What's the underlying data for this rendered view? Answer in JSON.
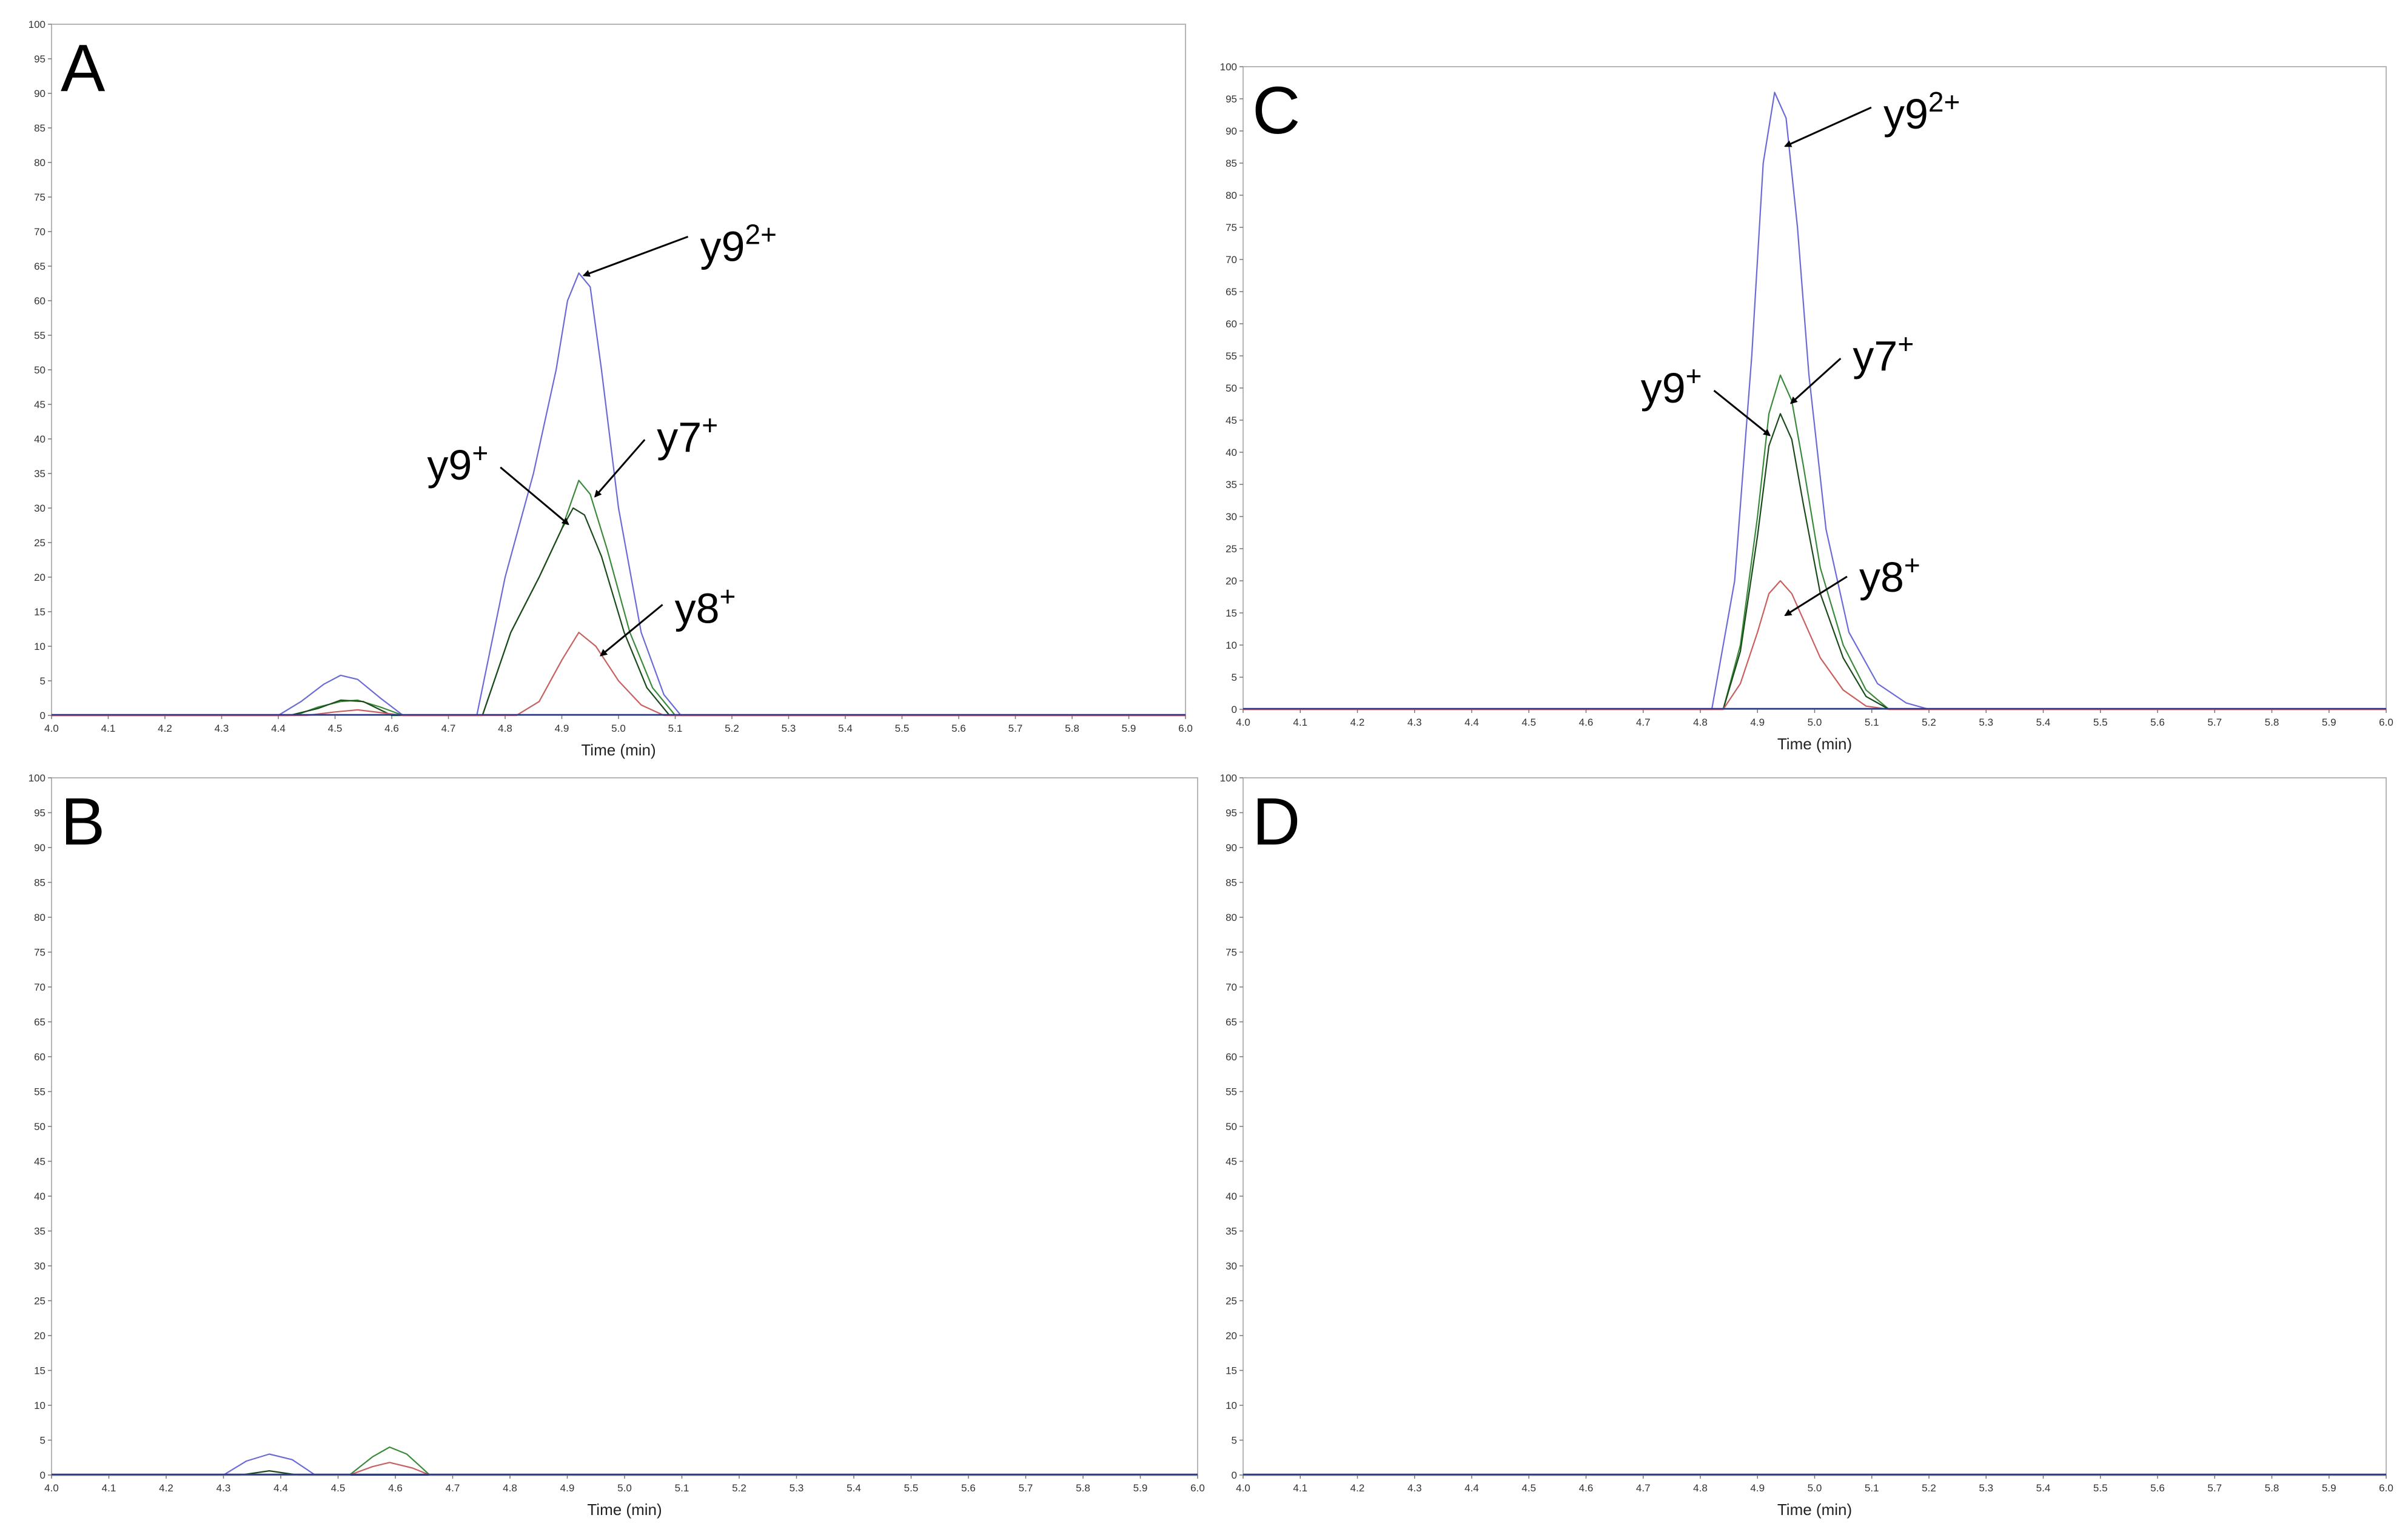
{
  "chart_data": [
    {
      "panel": "A",
      "type": "line",
      "xlabel": "Time (min)",
      "xlim": [
        4.0,
        6.0
      ],
      "ylim": [
        0,
        100
      ],
      "x_ticks": [
        "4.0",
        "4.1",
        "4.2",
        "4.3",
        "4.4",
        "4.5",
        "4.6",
        "4.7",
        "4.8",
        "4.9",
        "5.0",
        "5.1",
        "5.2",
        "5.3",
        "5.4",
        "5.5",
        "5.6",
        "5.7",
        "5.8",
        "5.9",
        "6.0"
      ],
      "y_ticks": [
        "0",
        "5",
        "10",
        "15",
        "20",
        "25",
        "30",
        "35",
        "40",
        "45",
        "50",
        "55",
        "60",
        "65",
        "70",
        "75",
        "80",
        "85",
        "90",
        "95",
        "100"
      ],
      "series": [
        {
          "color": "#6b6bd6",
          "x": [
            4.0,
            4.4,
            4.44,
            4.48,
            4.51,
            4.54,
            4.58,
            4.62,
            4.75,
            4.8,
            4.85,
            4.89,
            4.91,
            4.93,
            4.95,
            4.97,
            5.0,
            5.04,
            5.08,
            5.11,
            6.0
          ],
          "y": [
            0,
            0,
            2.0,
            4.5,
            5.8,
            5.2,
            2.5,
            0,
            0,
            20,
            35,
            50,
            60,
            64,
            62,
            50,
            30,
            12,
            3,
            0,
            0
          ]
        },
        {
          "color": "#3a8a3a",
          "x": [
            4.0,
            4.43,
            4.47,
            4.51,
            4.54,
            4.58,
            4.62,
            4.76,
            4.81,
            4.86,
            4.9,
            4.93,
            4.95,
            4.98,
            5.02,
            5.06,
            5.1,
            6.0
          ],
          "y": [
            0,
            0,
            1.2,
            2.0,
            2.2,
            1.2,
            0,
            0,
            12,
            20,
            27,
            34,
            32,
            24,
            12,
            4,
            0,
            0
          ]
        },
        {
          "color": "#1a4a1a",
          "x": [
            4.0,
            4.42,
            4.47,
            4.51,
            4.55,
            4.6,
            4.76,
            4.81,
            4.86,
            4.9,
            4.92,
            4.94,
            4.97,
            5.01,
            5.05,
            5.09,
            6.0
          ],
          "y": [
            0,
            0,
            1.0,
            2.2,
            2.0,
            0,
            0,
            12,
            20,
            27,
            30,
            29,
            23,
            12,
            4,
            0,
            0
          ]
        },
        {
          "color": "#c86060",
          "x": [
            4.0,
            4.45,
            4.5,
            4.54,
            4.58,
            4.62,
            4.82,
            4.86,
            4.9,
            4.93,
            4.96,
            5.0,
            5.04,
            5.08,
            6.0
          ],
          "y": [
            0,
            0,
            0.5,
            0.8,
            0.4,
            0,
            0,
            2,
            8,
            12,
            10,
            5,
            1.5,
            0,
            0
          ]
        }
      ],
      "annotations": [
        {
          "text": "y9",
          "sup": "2+",
          "x": 4.93,
          "y": 64
        },
        {
          "text": "y7",
          "sup": "+",
          "x": 4.95,
          "y": 32
        },
        {
          "text": "y9",
          "sup": "+",
          "x": 4.92,
          "y": 28
        },
        {
          "text": "y8",
          "sup": "+",
          "x": 4.96,
          "y": 9
        }
      ]
    },
    {
      "panel": "B",
      "type": "line",
      "xlabel": "Time (min)",
      "xlim": [
        4.0,
        6.0
      ],
      "ylim": [
        0,
        100
      ],
      "x_ticks": [
        "4.0",
        "4.1",
        "4.2",
        "4.3",
        "4.4",
        "4.5",
        "4.6",
        "4.7",
        "4.8",
        "4.9",
        "5.0",
        "5.1",
        "5.2",
        "5.3",
        "5.4",
        "5.5",
        "5.6",
        "5.7",
        "5.8",
        "5.9",
        "6.0"
      ],
      "y_ticks": [
        "0",
        "5",
        "10",
        "15",
        "20",
        "25",
        "30",
        "35",
        "40",
        "45",
        "50",
        "55",
        "60",
        "65",
        "70",
        "75",
        "80",
        "85",
        "90",
        "95",
        "100"
      ],
      "series": [
        {
          "color": "#6b6bd6",
          "x": [
            4.0,
            4.3,
            4.34,
            4.38,
            4.42,
            4.46,
            6.0
          ],
          "y": [
            0,
            0,
            2.0,
            3.0,
            2.2,
            0,
            0
          ]
        },
        {
          "color": "#3a8a3a",
          "x": [
            4.0,
            4.52,
            4.56,
            4.59,
            4.62,
            4.66,
            6.0
          ],
          "y": [
            0,
            0,
            2.6,
            4.0,
            3.0,
            0,
            0
          ]
        },
        {
          "color": "#1a4a1a",
          "x": [
            4.0,
            4.33,
            4.38,
            4.43,
            6.0
          ],
          "y": [
            0,
            0,
            0.6,
            0,
            0
          ]
        },
        {
          "color": "#c86060",
          "x": [
            4.0,
            4.52,
            4.56,
            4.59,
            4.63,
            4.66,
            6.0
          ],
          "y": [
            0,
            0,
            1.2,
            1.8,
            1.0,
            0,
            0
          ]
        }
      ],
      "annotations": []
    },
    {
      "panel": "C",
      "type": "line",
      "xlabel": "Time (min)",
      "xlim": [
        4.0,
        6.0
      ],
      "ylim": [
        0,
        100
      ],
      "x_ticks": [
        "4.0",
        "4.1",
        "4.2",
        "4.3",
        "4.4",
        "4.5",
        "4.6",
        "4.7",
        "4.8",
        "4.9",
        "5.0",
        "5.1",
        "5.2",
        "5.3",
        "5.4",
        "5.5",
        "5.6",
        "5.7",
        "5.8",
        "5.9",
        "6.0"
      ],
      "y_ticks": [
        "0",
        "5",
        "10",
        "15",
        "20",
        "25",
        "30",
        "35",
        "40",
        "45",
        "50",
        "55",
        "60",
        "65",
        "70",
        "75",
        "80",
        "85",
        "90",
        "95",
        "100"
      ],
      "series": [
        {
          "color": "#6b6bd6",
          "x": [
            4.0,
            4.82,
            4.86,
            4.89,
            4.91,
            4.93,
            4.95,
            4.97,
            4.99,
            5.02,
            5.06,
            5.11,
            5.16,
            5.2,
            6.0
          ],
          "y": [
            0,
            0,
            20,
            55,
            85,
            96,
            92,
            75,
            52,
            28,
            12,
            4,
            1,
            0,
            0
          ]
        },
        {
          "color": "#3a8a3a",
          "x": [
            4.0,
            4.84,
            4.87,
            4.9,
            4.92,
            4.94,
            4.96,
            4.98,
            5.01,
            5.05,
            5.09,
            5.13,
            6.0
          ],
          "y": [
            0,
            0,
            10,
            30,
            46,
            52,
            48,
            38,
            22,
            10,
            3,
            0,
            0
          ]
        },
        {
          "color": "#1a4a1a",
          "x": [
            4.0,
            4.84,
            4.87,
            4.9,
            4.92,
            4.94,
            4.96,
            4.98,
            5.01,
            5.05,
            5.09,
            5.13,
            6.0
          ],
          "y": [
            0,
            0,
            9,
            27,
            41,
            46,
            42,
            32,
            18,
            8,
            2,
            0,
            0
          ]
        },
        {
          "color": "#c86060",
          "x": [
            4.0,
            4.84,
            4.87,
            4.9,
            4.92,
            4.94,
            4.96,
            4.98,
            5.01,
            5.05,
            5.09,
            5.13,
            6.0
          ],
          "y": [
            0,
            0,
            4,
            12,
            18,
            20,
            18,
            14,
            8,
            3,
            0.5,
            0,
            0
          ]
        }
      ],
      "annotations": [
        {
          "text": "y9",
          "sup": "2+",
          "x": 4.94,
          "y": 88
        },
        {
          "text": "y7",
          "sup": "+",
          "x": 4.95,
          "y": 48
        },
        {
          "text": "y9",
          "sup": "+",
          "x": 4.93,
          "y": 43
        },
        {
          "text": "y8",
          "sup": "+",
          "x": 4.94,
          "y": 15
        }
      ]
    },
    {
      "panel": "D",
      "type": "line",
      "xlabel": "Time (min)",
      "xlim": [
        4.0,
        6.0
      ],
      "ylim": [
        0,
        100
      ],
      "x_ticks": [
        "4.0",
        "4.1",
        "4.2",
        "4.3",
        "4.4",
        "4.5",
        "4.6",
        "4.7",
        "4.8",
        "4.9",
        "5.0",
        "5.1",
        "5.2",
        "5.3",
        "5.4",
        "5.5",
        "5.6",
        "5.7",
        "5.8",
        "5.9",
        "6.0"
      ],
      "y_ticks": [
        "0",
        "5",
        "10",
        "15",
        "20",
        "25",
        "30",
        "35",
        "40",
        "45",
        "50",
        "55",
        "60",
        "65",
        "70",
        "75",
        "80",
        "85",
        "90",
        "95",
        "100"
      ],
      "series": [
        {
          "color": "#6b6bd6",
          "x": [
            4.0,
            6.0
          ],
          "y": [
            0,
            0
          ]
        },
        {
          "color": "#3a8a3a",
          "x": [
            4.0,
            6.0
          ],
          "y": [
            0,
            0
          ]
        },
        {
          "color": "#1a4a1a",
          "x": [
            4.0,
            6.0
          ],
          "y": [
            0,
            0
          ]
        },
        {
          "color": "#c86060",
          "x": [
            4.0,
            6.0
          ],
          "y": [
            0,
            0
          ]
        }
      ],
      "annotations": []
    }
  ]
}
